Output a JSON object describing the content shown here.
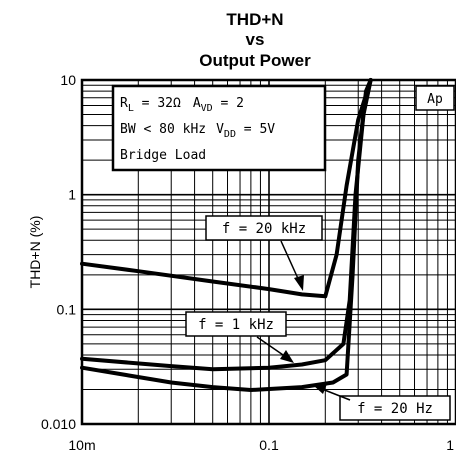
{
  "chart_data": {
    "type": "line",
    "title_lines": [
      "THD+N",
      "vs",
      "Output Power"
    ],
    "xlabel": "",
    "ylabel": "THD+N (%)",
    "x_scale": "log",
    "y_scale": "log",
    "xlim": [
      0.01,
      1
    ],
    "ylim": [
      0.01,
      10
    ],
    "x_ticks": [
      {
        "value": 0.01,
        "label": "10m"
      },
      {
        "value": 0.1,
        "label": "0.1"
      },
      {
        "value": 1,
        "label": "1"
      }
    ],
    "y_ticks": [
      {
        "value": 0.01,
        "label": "0.010"
      },
      {
        "value": 0.1,
        "label": "0.1"
      },
      {
        "value": 1,
        "label": "1"
      },
      {
        "value": 10,
        "label": "10"
      }
    ],
    "grid": true,
    "series": [
      {
        "name": "f = 20 kHz",
        "points": [
          [
            0.01,
            0.25
          ],
          [
            0.02,
            0.215
          ],
          [
            0.05,
            0.175
          ],
          [
            0.1,
            0.15
          ],
          [
            0.15,
            0.135
          ],
          [
            0.2,
            0.13
          ],
          [
            0.23,
            0.3
          ],
          [
            0.26,
            1.2
          ],
          [
            0.3,
            4.5
          ],
          [
            0.35,
            10
          ]
        ]
      },
      {
        "name": "f = 1 kHz",
        "points": [
          [
            0.01,
            0.037
          ],
          [
            0.03,
            0.032
          ],
          [
            0.05,
            0.03
          ],
          [
            0.1,
            0.031
          ],
          [
            0.15,
            0.033
          ],
          [
            0.2,
            0.036
          ],
          [
            0.25,
            0.05
          ],
          [
            0.27,
            0.12
          ],
          [
            0.29,
            1.0
          ],
          [
            0.32,
            5.0
          ],
          [
            0.35,
            10
          ]
        ]
      },
      {
        "name": "f = 20 Hz",
        "points": [
          [
            0.01,
            0.031
          ],
          [
            0.03,
            0.023
          ],
          [
            0.05,
            0.021
          ],
          [
            0.08,
            0.0198
          ],
          [
            0.15,
            0.021
          ],
          [
            0.22,
            0.023
          ],
          [
            0.26,
            0.027
          ],
          [
            0.28,
            0.2
          ],
          [
            0.3,
            2.0
          ],
          [
            0.33,
            8.0
          ],
          [
            0.35,
            10
          ]
        ]
      }
    ],
    "legend_box": {
      "line1": {
        "rl": "R",
        "rl_sub": "L",
        "rl_val": " = 32Ω",
        "av": "A",
        "av_sub": "VD",
        "av_val": " = 2"
      },
      "line2": {
        "bw": "BW < 80 kHz",
        "vdd": "V",
        "vdd_sub": "DD",
        "vdd_val": " = 5V"
      },
      "line3": "Bridge Load"
    },
    "annotations": [
      "f = 20 kHz",
      "f = 1 kHz",
      "f = 20 Hz"
    ],
    "corner_tag": "Ap"
  }
}
